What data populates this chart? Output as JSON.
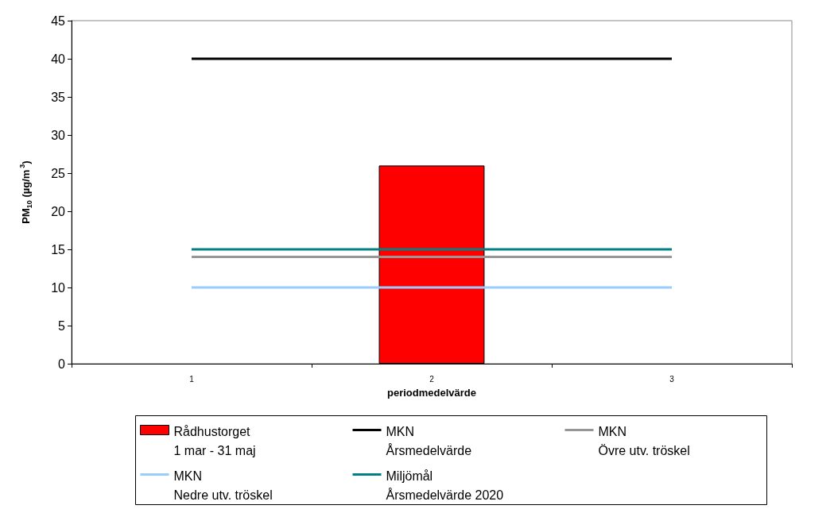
{
  "chart_data": {
    "type": "bar",
    "xlabel": "periodmedelvärde",
    "ylabel": "PM$_{10}$ (µg/m$^{3}$)",
    "categories": [
      "1",
      "2",
      "3"
    ],
    "series": [
      {
        "name": "Rådhustorget\n1 mar - 31 maj",
        "color": "#ff0000",
        "values": [
          null,
          26,
          null
        ]
      },
      {
        "name": "MKN\nÅrsmedelvärde",
        "type": "line",
        "color": "#000000",
        "values": [
          40,
          40,
          40
        ]
      },
      {
        "name": "MKN\nÖvre utv. tröskel",
        "type": "line",
        "color": "#969696",
        "values": [
          14,
          14,
          14
        ]
      },
      {
        "name": "MKN\nNedre utv. tröskel",
        "type": "line",
        "color": "#99ccff",
        "values": [
          10,
          10,
          10
        ]
      },
      {
        "name": "Miljömål\nÅrsmedelvärde 2020",
        "type": "line",
        "color": "#008080",
        "values": [
          15,
          15,
          15
        ]
      }
    ],
    "ylim": [
      0,
      45
    ],
    "yticks": [
      0,
      5,
      10,
      15,
      20,
      25,
      30,
      35,
      40,
      45
    ],
    "grid": false,
    "legend": "bottom",
    "marker": "none",
    "line_style": "solid"
  }
}
